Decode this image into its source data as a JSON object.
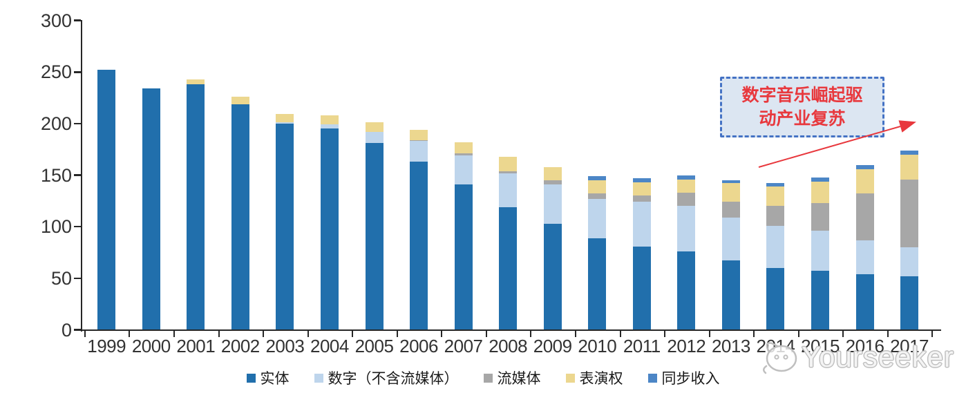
{
  "chart_data": {
    "type": "bar",
    "stacked": true,
    "categories": [
      "1999",
      "2000",
      "2001",
      "2002",
      "2003",
      "2004",
      "2005",
      "2006",
      "2007",
      "2008",
      "2009",
      "2010",
      "2011",
      "2012",
      "2013",
      "2014",
      "2015",
      "2016",
      "2017"
    ],
    "series": [
      {
        "name": "实体",
        "color": "#216fac",
        "values": [
          252,
          234,
          238,
          219,
          200,
          195,
          181,
          163,
          141,
          119,
          103,
          89,
          81,
          76,
          67,
          60,
          57,
          54,
          52
        ]
      },
      {
        "name": "数字（不含流媒体）",
        "color": "#bed5ec",
        "values": [
          0,
          0,
          0,
          0,
          1,
          4,
          11,
          20,
          28,
          33,
          38,
          38,
          43,
          44,
          42,
          41,
          39,
          33,
          28
        ]
      },
      {
        "name": "流媒体",
        "color": "#a7a7a7",
        "values": [
          0,
          0,
          0,
          0,
          0,
          0,
          0,
          1,
          2,
          2,
          4,
          5,
          6,
          13,
          15,
          19,
          27,
          45,
          66
        ]
      },
      {
        "name": "表演权",
        "color": "#ecd78f",
        "values": [
          0,
          0,
          5,
          7,
          8,
          9,
          9,
          10,
          11,
          14,
          13,
          13,
          13,
          13,
          18,
          19,
          21,
          24,
          24
        ]
      },
      {
        "name": "同步收入",
        "color": "#4c86c6",
        "values": [
          0,
          0,
          0,
          0,
          0,
          0,
          0,
          0,
          0,
          0,
          0,
          4,
          4,
          4,
          3,
          3,
          4,
          4,
          4
        ]
      }
    ],
    "title": "",
    "xlabel": "",
    "ylabel": "",
    "ylim": [
      0,
      300
    ],
    "yticks": [
      0,
      50,
      100,
      150,
      200,
      250,
      300
    ],
    "grid": false,
    "legend_position": "bottom"
  },
  "annotation": {
    "line1": "数字音乐崛起驱",
    "line2": "动产业复苏",
    "text_color": "#e8383d",
    "box_fill": "#dce6f2",
    "box_border": "#4472c4",
    "arrow_color": "#e8383d"
  },
  "watermark": {
    "text": "Yourseeker",
    "logo": "cat-logo-icon",
    "color": "#bfbfbf"
  },
  "axis_color": "#262626"
}
